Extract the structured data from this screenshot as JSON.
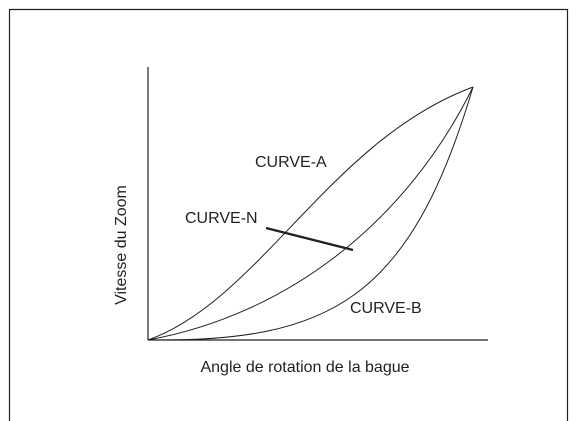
{
  "curves": [
    {
      "label": "CURVE-A"
    },
    {
      "label": "CURVE-N"
    },
    {
      "label": "CURVE-B"
    }
  ],
  "axes": {
    "y_label": "Vitesse du Zoom",
    "x_label": "Angle de rotation de la bague"
  }
}
